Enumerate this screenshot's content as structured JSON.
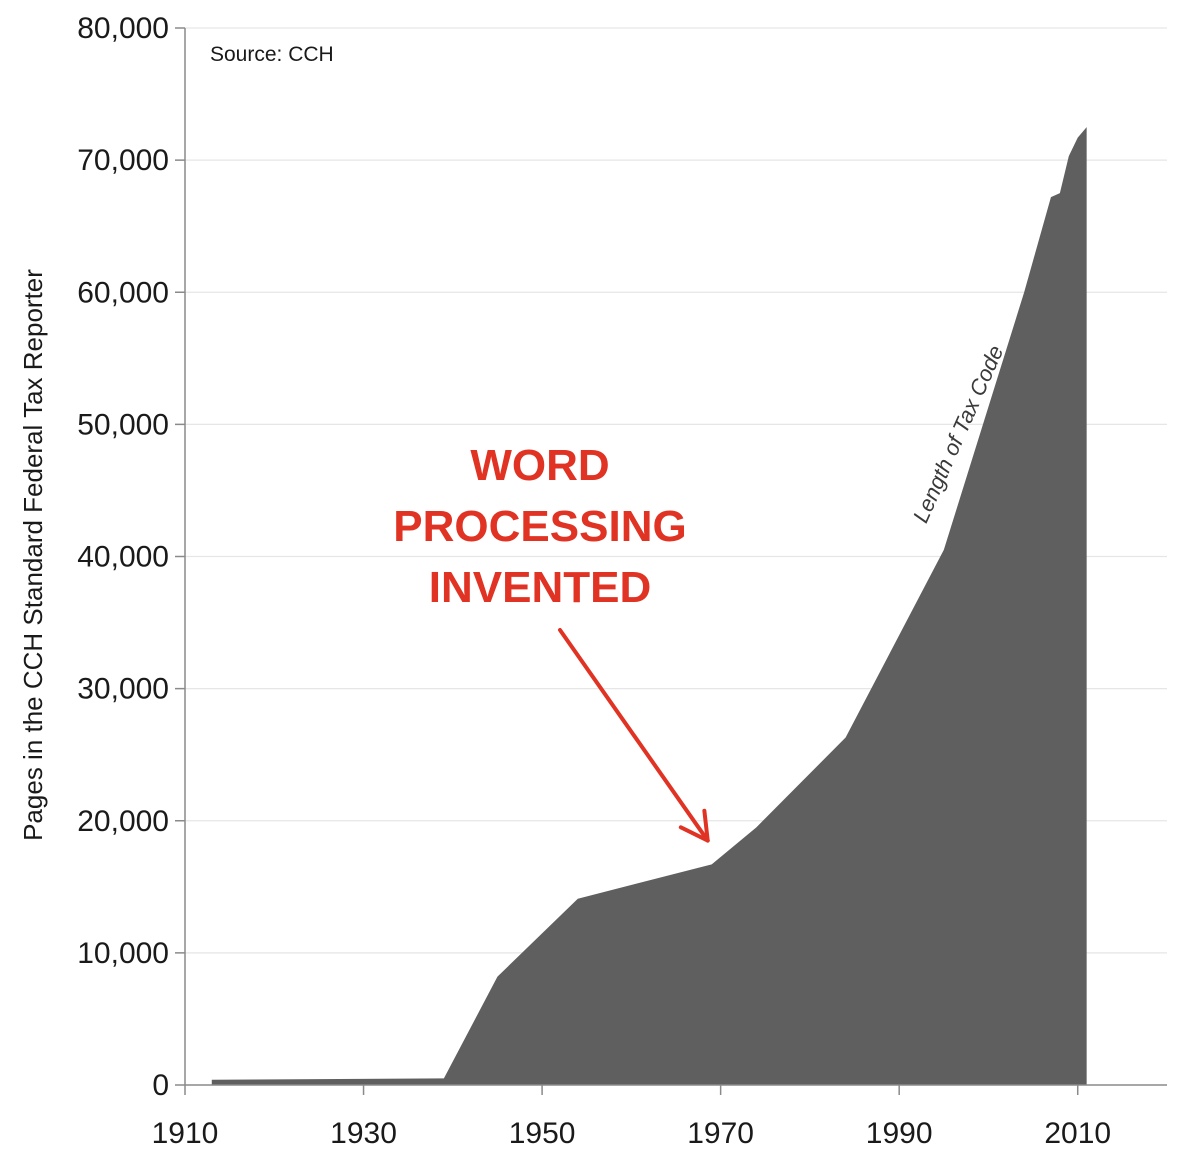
{
  "chart_data": {
    "type": "area",
    "title": "",
    "xlabel": "",
    "ylabel": "Pages in the CCH Standard Federal Tax Reporter",
    "source": "Source: CCH",
    "xlim": [
      1910,
      2020
    ],
    "ylim": [
      0,
      80000
    ],
    "x_ticks": [
      "1910",
      "1930",
      "1950",
      "1970",
      "1990",
      "2010"
    ],
    "y_ticks": [
      "0",
      "10,000",
      "20,000",
      "30,000",
      "40,000",
      "50,000",
      "60,000",
      "70,000",
      "80,000"
    ],
    "grid": true,
    "series": [
      {
        "name": "Length of Tax Code",
        "color": "#5f5f5f",
        "x": [
          1913,
          1939,
          1945,
          1954,
          1969,
          1974,
          1984,
          1995,
          2004,
          2007,
          2008,
          2009,
          2010,
          2011
        ],
        "y": [
          400,
          500,
          8200,
          14100,
          16700,
          19500,
          26300,
          40500,
          60000,
          67200,
          67500,
          70300,
          71700,
          72500
        ]
      }
    ],
    "annotation": {
      "lines": [
        "WORD",
        "PROCESSING",
        "INVENTED"
      ],
      "color": "#e03324",
      "arrow_target_x": 1969,
      "arrow_target_y": 18500
    }
  }
}
